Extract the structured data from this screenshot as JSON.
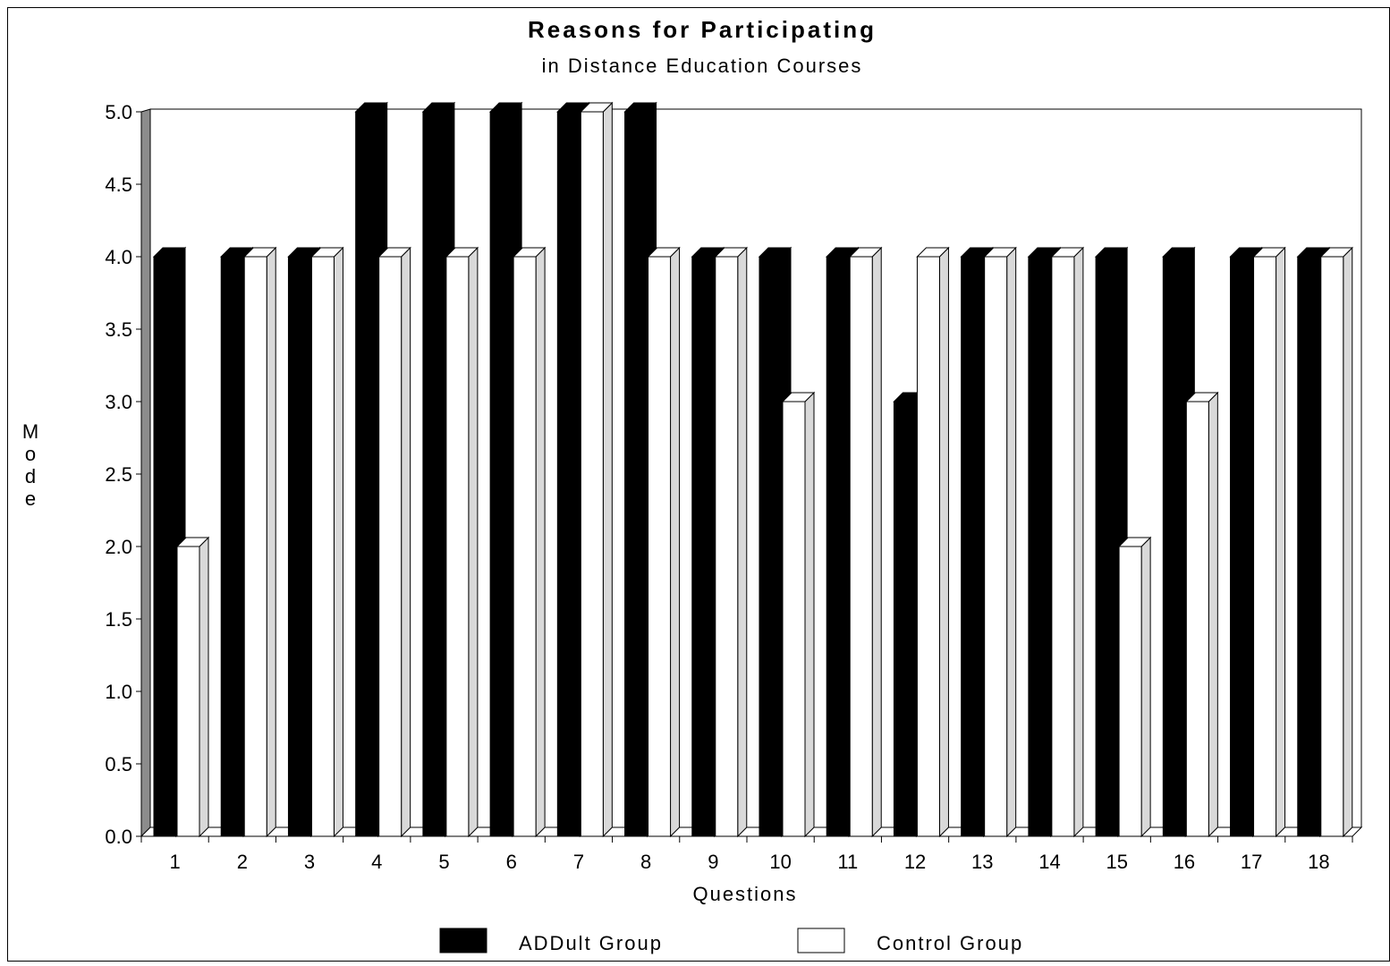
{
  "chart_data": {
    "type": "bar",
    "title": "Reasons for Participating",
    "subtitle": "in Distance Education Courses",
    "xlabel": "Questions",
    "ylabel": "Mode",
    "ylim": [
      0,
      5
    ],
    "yticks": [
      "0.0",
      "0.5",
      "1.0",
      "1.5",
      "2.0",
      "2.5",
      "3.0",
      "3.5",
      "4.0",
      "4.5",
      "5.0"
    ],
    "categories": [
      "1",
      "2",
      "3",
      "4",
      "5",
      "6",
      "7",
      "8",
      "9",
      "10",
      "11",
      "12",
      "13",
      "14",
      "15",
      "16",
      "17",
      "18"
    ],
    "series": [
      {
        "name": "ADDult Group",
        "color": "#000000",
        "values": [
          4,
          4,
          4,
          5,
          5,
          5,
          5,
          5,
          4,
          4,
          4,
          3,
          4,
          4,
          4,
          4,
          4,
          4
        ]
      },
      {
        "name": "Control Group",
        "color": "#ffffff",
        "values": [
          2,
          4,
          4,
          4,
          4,
          4,
          5,
          4,
          4,
          3,
          4,
          4,
          4,
          4,
          2,
          3,
          4,
          4
        ]
      }
    ],
    "grid": false,
    "legend": "bottom",
    "style": "3d"
  }
}
